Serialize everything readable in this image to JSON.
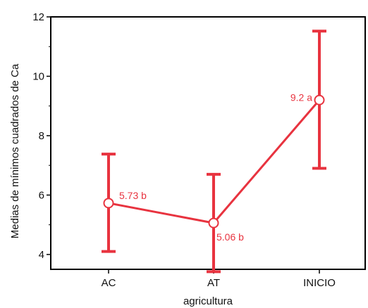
{
  "chart_data": {
    "type": "line",
    "title": "",
    "xlabel": "agricultura",
    "ylabel": "Medias de mínimos cuadrados de Ca",
    "categories": [
      "AC",
      "AT",
      "INICIO"
    ],
    "ylim": [
      3.5,
      12
    ],
    "yticks": [
      4,
      6,
      8,
      10,
      12
    ],
    "grid": false,
    "legend": "none",
    "series": [
      {
        "values": [
          5.73,
          5.06,
          9.2
        ],
        "lower": [
          4.1,
          3.42,
          6.9
        ],
        "upper": [
          7.38,
          6.7,
          11.52
        ],
        "labels": [
          "5.73 b",
          "5.06 b",
          "9.2 a"
        ],
        "color": "#e8333f"
      }
    ]
  }
}
